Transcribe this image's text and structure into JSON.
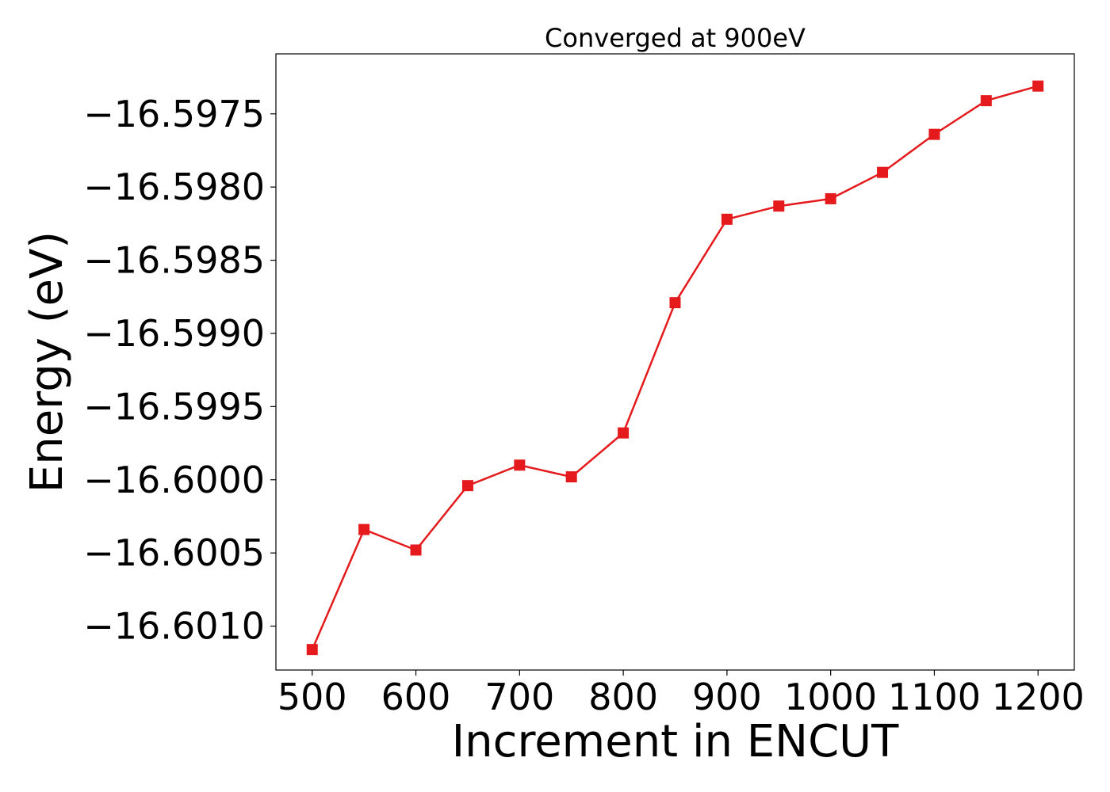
{
  "chart_data": {
    "type": "line",
    "title": "Converged at 900eV",
    "xlabel": "Increment in ENCUT",
    "ylabel": "Energy (eV)",
    "x": [
      500,
      550,
      600,
      650,
      700,
      750,
      800,
      850,
      900,
      950,
      1000,
      1050,
      1100,
      1150,
      1200
    ],
    "series": [
      {
        "values": [
          -16.60116,
          -16.60034,
          -16.60048,
          -16.60004,
          -16.5999,
          -16.59998,
          -16.59968,
          -16.59879,
          -16.59822,
          -16.59813,
          -16.59808,
          -16.5979,
          -16.59764,
          -16.59741,
          -16.59731
        ],
        "color": "#e41a1c",
        "marker": "square"
      }
    ],
    "xticks": [
      500,
      600,
      700,
      800,
      900,
      1000,
      1100,
      1200
    ],
    "xtick_labels": [
      "500",
      "600",
      "700",
      "800",
      "900",
      "1000",
      "1100",
      "1200"
    ],
    "yticks": [
      -16.601,
      -16.6005,
      -16.6,
      -16.5995,
      -16.599,
      -16.5985,
      -16.598,
      -16.5975
    ],
    "ytick_labels": [
      "−16.6010",
      "−16.6005",
      "−16.6000",
      "−16.5995",
      "−16.5990",
      "−16.5985",
      "−16.5980",
      "−16.5975"
    ],
    "xlim": [
      465,
      1235
    ],
    "ylim": [
      -16.6013,
      -16.59709
    ],
    "grid": false,
    "legend": "none"
  }
}
